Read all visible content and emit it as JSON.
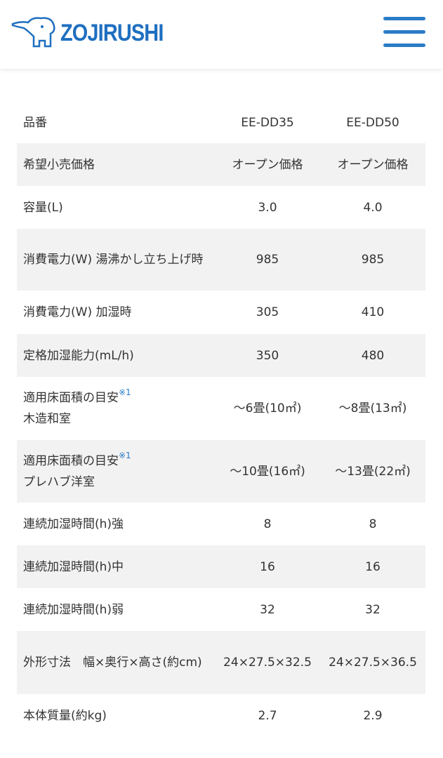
{
  "header": {
    "logo_text": "ZOJIRUSHI",
    "brand_color": "#1f6fc0",
    "menu_icon": "hamburger-icon"
  },
  "table": {
    "rows": [
      {
        "label": "品番",
        "note": "",
        "sub": "",
        "v1": "EE-DD35",
        "v2": "EE-DD50"
      },
      {
        "label": "希望小売価格",
        "note": "",
        "sub": "",
        "v1": "オープン価格",
        "v2": "オープン価格"
      },
      {
        "label": "容量(L)",
        "note": "",
        "sub": "",
        "v1": "3.0",
        "v2": "4.0"
      },
      {
        "label": "消費電力(W) 湯沸かし立ち上げ時",
        "note": "",
        "sub": "",
        "v1": "985",
        "v2": "985"
      },
      {
        "label": "消費電力(W) 加湿時",
        "note": "",
        "sub": "",
        "v1": "305",
        "v2": "410"
      },
      {
        "label": "定格加湿能力(mL/h)",
        "note": "",
        "sub": "",
        "v1": "350",
        "v2": "480"
      },
      {
        "label": "適用床面積の目安",
        "note": "※1",
        "sub": "木造和室",
        "v1": "〜6畳(10㎡)",
        "v2": "〜8畳(13㎡)"
      },
      {
        "label": "適用床面積の目安",
        "note": "※1",
        "sub": "プレハブ洋室",
        "v1": "〜10畳(16㎡)",
        "v2": "〜13畳(22㎡)"
      },
      {
        "label": "連続加湿時間(h)強",
        "note": "",
        "sub": "",
        "v1": "8",
        "v2": "8"
      },
      {
        "label": "連続加湿時間(h)中",
        "note": "",
        "sub": "",
        "v1": "16",
        "v2": "16"
      },
      {
        "label": "連続加湿時間(h)弱",
        "note": "",
        "sub": "",
        "v1": "32",
        "v2": "32"
      },
      {
        "label": "外形寸法　幅×奥行×高さ(約cm)",
        "note": "",
        "sub": "",
        "v1": "24×27.5×32.5",
        "v2": "24×27.5×36.5"
      },
      {
        "label": "本体質量(約kg)",
        "note": "",
        "sub": "",
        "v1": "2.7",
        "v2": "2.9"
      }
    ]
  }
}
